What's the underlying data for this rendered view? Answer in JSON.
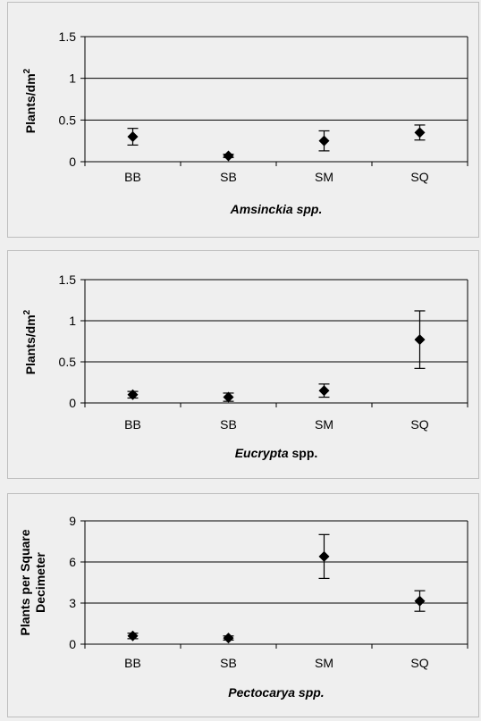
{
  "chart_data": [
    {
      "type": "scatter",
      "title": "",
      "xlabel_parts": [
        {
          "text": "Amsinckia",
          "italic": true
        },
        {
          "text": " spp.",
          "italic": true
        }
      ],
      "ylabel": "Plants/dm",
      "ylabel_superscript": "2",
      "categories": [
        "BB",
        "SB",
        "SM",
        "SQ"
      ],
      "values": [
        0.3,
        0.07,
        0.25,
        0.35
      ],
      "error_low": [
        0.2,
        0.05,
        0.13,
        0.26
      ],
      "error_high": [
        0.4,
        0.09,
        0.37,
        0.44
      ],
      "ylim": [
        0,
        1.5
      ],
      "yticks": [
        "0",
        "0.5",
        "1",
        "1.5"
      ],
      "ytick_values": [
        0,
        0.5,
        1,
        1.5
      ],
      "grid": true,
      "legend": "none"
    },
    {
      "type": "scatter",
      "title": "",
      "xlabel_parts": [
        {
          "text": "Eucrypta",
          "italic": true
        },
        {
          "text": " spp.",
          "italic": false
        }
      ],
      "ylabel": "Plants/dm",
      "ylabel_superscript": "2",
      "categories": [
        "BB",
        "SB",
        "SM",
        "SQ"
      ],
      "values": [
        0.1,
        0.07,
        0.15,
        0.77
      ],
      "error_low": [
        0.06,
        0.02,
        0.07,
        0.42
      ],
      "error_high": [
        0.14,
        0.12,
        0.23,
        1.12
      ],
      "ylim": [
        0,
        1.5
      ],
      "yticks": [
        "0",
        "0.5",
        "1",
        "1.5"
      ],
      "ytick_values": [
        0,
        0.5,
        1,
        1.5
      ],
      "grid": true,
      "legend": "none"
    },
    {
      "type": "scatter",
      "title": "",
      "xlabel_parts": [
        {
          "text": "Pectocarya",
          "italic": true
        },
        {
          "text": " spp.",
          "italic": true
        }
      ],
      "ylabel_lines": [
        "Plants per Square",
        "Decimeter"
      ],
      "categories": [
        "BB",
        "SB",
        "SM",
        "SQ"
      ],
      "values": [
        0.6,
        0.45,
        6.4,
        3.15
      ],
      "error_low": [
        0.4,
        0.3,
        4.8,
        2.4
      ],
      "error_high": [
        0.8,
        0.6,
        8.0,
        3.9
      ],
      "ylim": [
        0,
        9
      ],
      "yticks": [
        "0",
        "3",
        "6",
        "9"
      ],
      "ytick_values": [
        0,
        3,
        6,
        9
      ],
      "grid": true,
      "legend": "none"
    }
  ],
  "colors": {
    "background": "#efefef",
    "ink": "#000000"
  }
}
